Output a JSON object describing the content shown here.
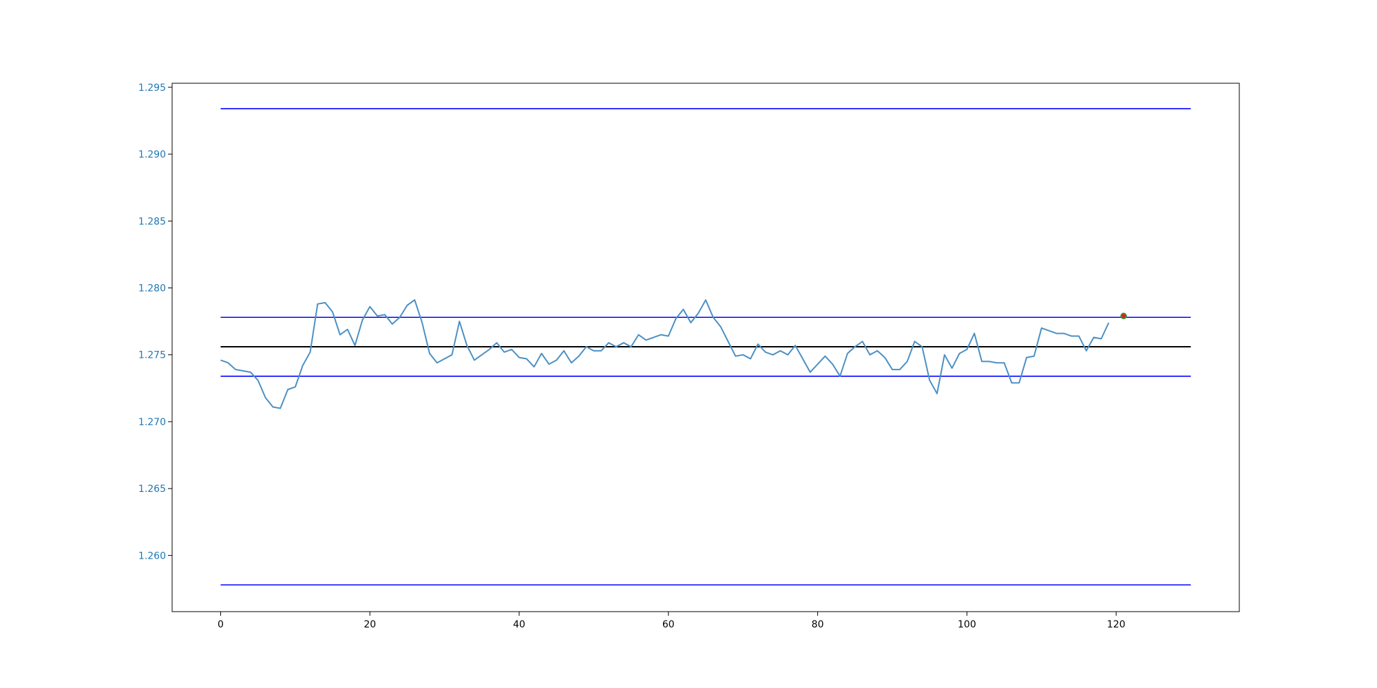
{
  "chart_data": {
    "type": "line",
    "title": "",
    "xlabel": "",
    "ylabel": "",
    "xlim": [
      -6.5,
      136.5
    ],
    "ylim": [
      1.2558,
      1.2953
    ],
    "grid": false,
    "xticks": [
      0,
      20,
      40,
      60,
      80,
      100,
      120
    ],
    "xtick_labels": [
      "0",
      "20",
      "40",
      "60",
      "80",
      "100",
      "120"
    ],
    "yticks": [
      1.26,
      1.265,
      1.27,
      1.275,
      1.28,
      1.285,
      1.29,
      1.295
    ],
    "ytick_labels": [
      "1.260",
      "1.265",
      "1.270",
      "1.275",
      "1.280",
      "1.285",
      "1.290",
      "1.295"
    ],
    "ytick_color": "#1f77b4",
    "series": [
      {
        "color": "#4a90c4",
        "x": [
          0,
          1,
          2,
          3,
          4,
          5,
          6,
          7,
          8,
          9,
          10,
          11,
          12,
          13,
          14,
          15,
          16,
          17,
          18,
          19,
          20,
          21,
          22,
          23,
          24,
          25,
          26,
          27,
          28,
          29,
          30,
          31,
          32,
          33,
          34,
          35,
          36,
          37,
          38,
          39,
          40,
          41,
          42,
          43,
          44,
          45,
          46,
          47,
          48,
          49,
          50,
          51,
          52,
          53,
          54,
          55,
          56,
          57,
          58,
          59,
          60,
          61,
          62,
          63,
          64,
          65,
          66,
          67,
          68,
          69,
          70,
          71,
          72,
          73,
          74,
          75,
          76,
          77,
          78,
          79,
          80,
          81,
          82,
          83,
          84,
          85,
          86,
          87,
          88,
          89,
          90,
          91,
          92,
          93,
          94,
          95,
          96,
          97,
          98,
          99,
          100,
          101,
          102,
          103,
          104,
          105,
          106,
          107,
          108,
          109,
          110,
          111,
          112,
          113,
          114,
          115,
          116,
          117,
          118,
          119
        ],
        "y": [
          1.2746,
          1.2744,
          1.2739,
          1.2738,
          1.2737,
          1.2731,
          1.2718,
          1.2711,
          1.271,
          1.2724,
          1.2726,
          1.2742,
          1.2752,
          1.2788,
          1.2789,
          1.2782,
          1.2765,
          1.2769,
          1.2757,
          1.2776,
          1.2786,
          1.2779,
          1.278,
          1.2773,
          1.2778,
          1.2787,
          1.2791,
          1.2774,
          1.2751,
          1.2744,
          1.2747,
          1.275,
          1.2775,
          1.2757,
          1.2746,
          1.275,
          1.2754,
          1.2759,
          1.2752,
          1.2754,
          1.2748,
          1.2747,
          1.2741,
          1.2751,
          1.2743,
          1.2746,
          1.2753,
          1.2744,
          1.2749,
          1.2756,
          1.2753,
          1.2753,
          1.2759,
          1.2756,
          1.2759,
          1.2756,
          1.2765,
          1.2761,
          1.2763,
          1.2765,
          1.2764,
          1.2777,
          1.2784,
          1.2774,
          1.2781,
          1.2791,
          1.2778,
          1.2771,
          1.276,
          1.2749,
          1.275,
          1.2747,
          1.2758,
          1.2752,
          1.275,
          1.2753,
          1.275,
          1.2757,
          1.2747,
          1.2737,
          1.2743,
          1.2749,
          1.2743,
          1.2734,
          1.2751,
          1.2756,
          1.276,
          1.275,
          1.2753,
          1.2748,
          1.2739,
          1.2739,
          1.2745,
          1.276,
          1.2756,
          1.2731,
          1.2721,
          1.275,
          1.274,
          1.2751,
          1.2754,
          1.2766,
          1.2745,
          1.2745,
          1.2744,
          1.2744,
          1.2729,
          1.2729,
          1.2748,
          1.2749,
          1.277,
          1.2768,
          1.2766,
          1.2766,
          1.2764,
          1.2764,
          1.2753,
          1.2763,
          1.2762,
          1.2774
        ]
      }
    ],
    "hlines": [
      {
        "y": 1.2934,
        "color": "#0000ff",
        "xmin": 0,
        "xmax": 130
      },
      {
        "y": 1.2778,
        "color": "#0000ff",
        "xmin": 0,
        "xmax": 130
      },
      {
        "y": 1.2756,
        "color": "#000000",
        "xmin": 0,
        "xmax": 130
      },
      {
        "y": 1.2734,
        "color": "#0000ff",
        "xmin": 0,
        "xmax": 130
      },
      {
        "y": 1.2578,
        "color": "#0000ff",
        "xmin": 0,
        "xmax": 130
      }
    ],
    "marker": {
      "x": 121,
      "y": 1.2779,
      "fill": "#d62728",
      "edge": "#2ca02c"
    }
  }
}
